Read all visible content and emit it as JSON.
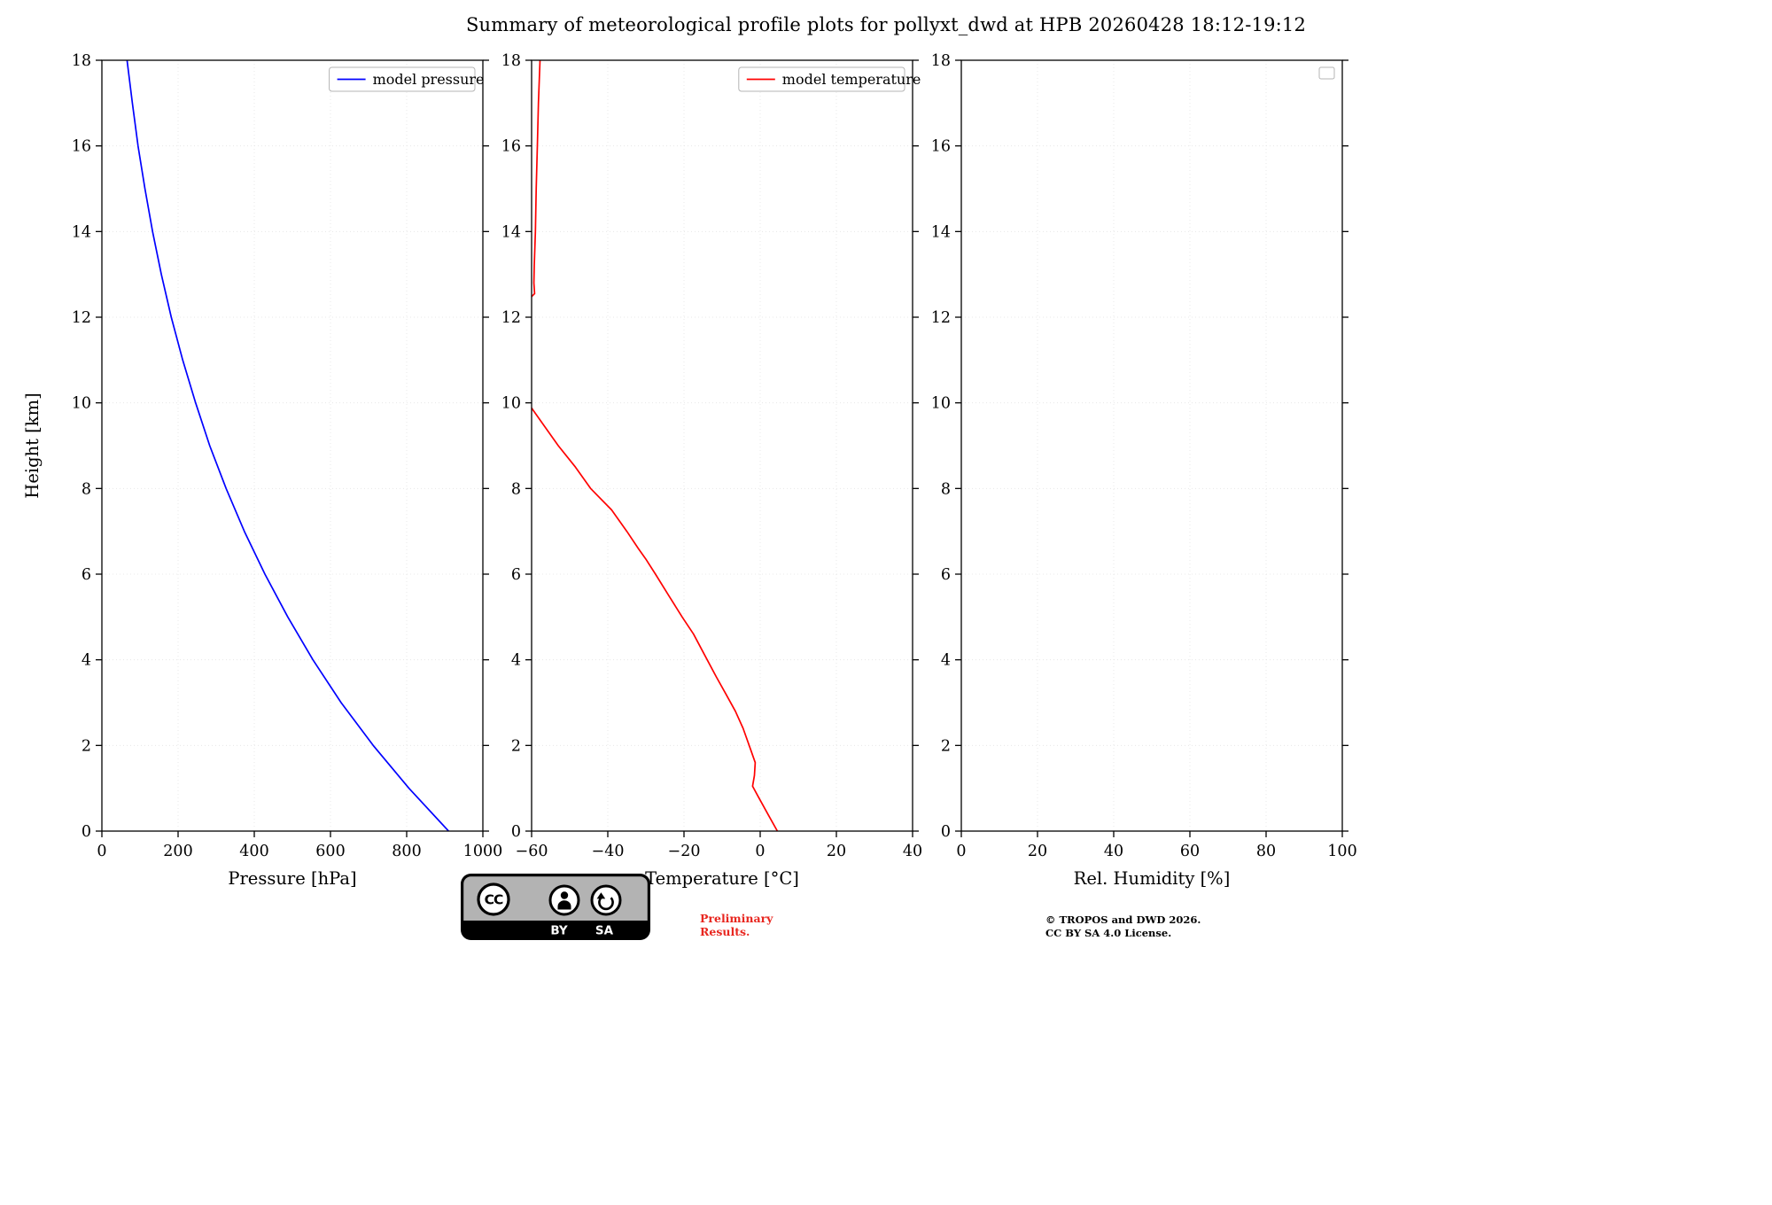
{
  "title": "Summary of meteorological profile plots for pollyxt_dwd at HPB 20260428 18:12-19:12",
  "footer": {
    "badge": {
      "cc": "CC",
      "by": "BY",
      "sa": "SA"
    },
    "preliminary_line1": "Preliminary",
    "preliminary_line2": "Results.",
    "preliminary_color": "#e8261f",
    "copyright_line1": "© TROPOS and DWD 2026.",
    "copyright_line2": "CC BY SA 4.0 License."
  },
  "chart_data": [
    {
      "name": "pressure",
      "type": "line",
      "title": "",
      "xlabel": "Pressure [hPa]",
      "ylabel": "Height [km]",
      "xlim": [
        0,
        1000
      ],
      "ylim": [
        0,
        18
      ],
      "xticks": [
        0,
        200,
        400,
        600,
        800,
        1000
      ],
      "yticks": [
        0,
        2,
        4,
        6,
        8,
        10,
        12,
        14,
        16,
        18
      ],
      "grid": true,
      "legend": {
        "position": "upper right",
        "entries": [
          {
            "label": "model pressure",
            "color": "#0000ff"
          }
        ]
      },
      "series": [
        {
          "name": "model pressure",
          "color": "#0000ff",
          "segments": [
            [
              [
                910,
                0
              ],
              [
                806,
                1
              ],
              [
                712,
                2
              ],
              [
                628,
                3
              ],
              [
                554,
                4
              ],
              [
                488,
                5
              ],
              [
                428,
                6
              ],
              [
                374,
                7
              ],
              [
                326,
                8
              ],
              [
                283,
                9
              ],
              [
                246,
                10
              ],
              [
                212,
                11
              ],
              [
                182,
                12
              ],
              [
                156,
                13
              ],
              [
                133,
                14
              ],
              [
                113,
                15
              ],
              [
                95,
                16
              ],
              [
                80,
                17
              ],
              [
                66,
                18
              ]
            ]
          ]
        }
      ]
    },
    {
      "name": "temperature",
      "type": "line",
      "title": "",
      "xlabel": "Temperature [°C]",
      "ylabel": "",
      "xlim": [
        -60,
        40
      ],
      "ylim": [
        0,
        18
      ],
      "xticks": [
        -60,
        -40,
        -20,
        0,
        20,
        40
      ],
      "yticks": [
        0,
        2,
        4,
        6,
        8,
        10,
        12,
        14,
        16,
        18
      ],
      "grid": true,
      "legend": {
        "position": "upper right",
        "entries": [
          {
            "label": "model temperature",
            "color": "#ff0000"
          }
        ]
      },
      "series": [
        {
          "name": "model temperature",
          "color": "#ff0000",
          "segments": [
            [
              [
                4.5,
                0
              ],
              [
                2,
                0.4
              ],
              [
                -0.5,
                0.8
              ],
              [
                -2,
                1.05
              ],
              [
                -1.5,
                1.3
              ],
              [
                -1.3,
                1.6
              ],
              [
                -2.5,
                1.9
              ],
              [
                -4.5,
                2.4
              ],
              [
                -6.5,
                2.8
              ],
              [
                -9,
                3.2
              ],
              [
                -11.5,
                3.6
              ],
              [
                -14.5,
                4.1
              ],
              [
                -17.5,
                4.6
              ],
              [
                -20.5,
                5.0
              ],
              [
                -24,
                5.5
              ],
              [
                -27.5,
                6.0
              ],
              [
                -30,
                6.35
              ],
              [
                -32,
                6.6
              ],
              [
                -35,
                7.0
              ],
              [
                -39,
                7.5
              ],
              [
                -44.5,
                8.0
              ],
              [
                -48.5,
                8.5
              ],
              [
                -53,
                9.0
              ],
              [
                -57,
                9.5
              ],
              [
                -60,
                9.88
              ]
            ],
            [
              [
                -60,
                12.48
              ],
              [
                -59.2,
                12.55
              ],
              [
                -59.4,
                12.8
              ],
              [
                -59.3,
                13.2
              ],
              [
                -59.0,
                14.0
              ],
              [
                -58.8,
                15.0
              ],
              [
                -58.5,
                16.0
              ],
              [
                -58.2,
                17.0
              ],
              [
                -57.8,
                18.0
              ]
            ]
          ]
        }
      ]
    },
    {
      "name": "humidity",
      "type": "line",
      "title": "",
      "xlabel": "Rel. Humidity [%]",
      "ylabel": "",
      "xlim": [
        0,
        100
      ],
      "ylim": [
        0,
        18
      ],
      "xticks": [
        0,
        20,
        40,
        60,
        80,
        100
      ],
      "yticks": [
        0,
        2,
        4,
        6,
        8,
        10,
        12,
        14,
        16,
        18
      ],
      "grid": true,
      "legend": {
        "position": "upper right",
        "entries": []
      },
      "series": []
    }
  ]
}
